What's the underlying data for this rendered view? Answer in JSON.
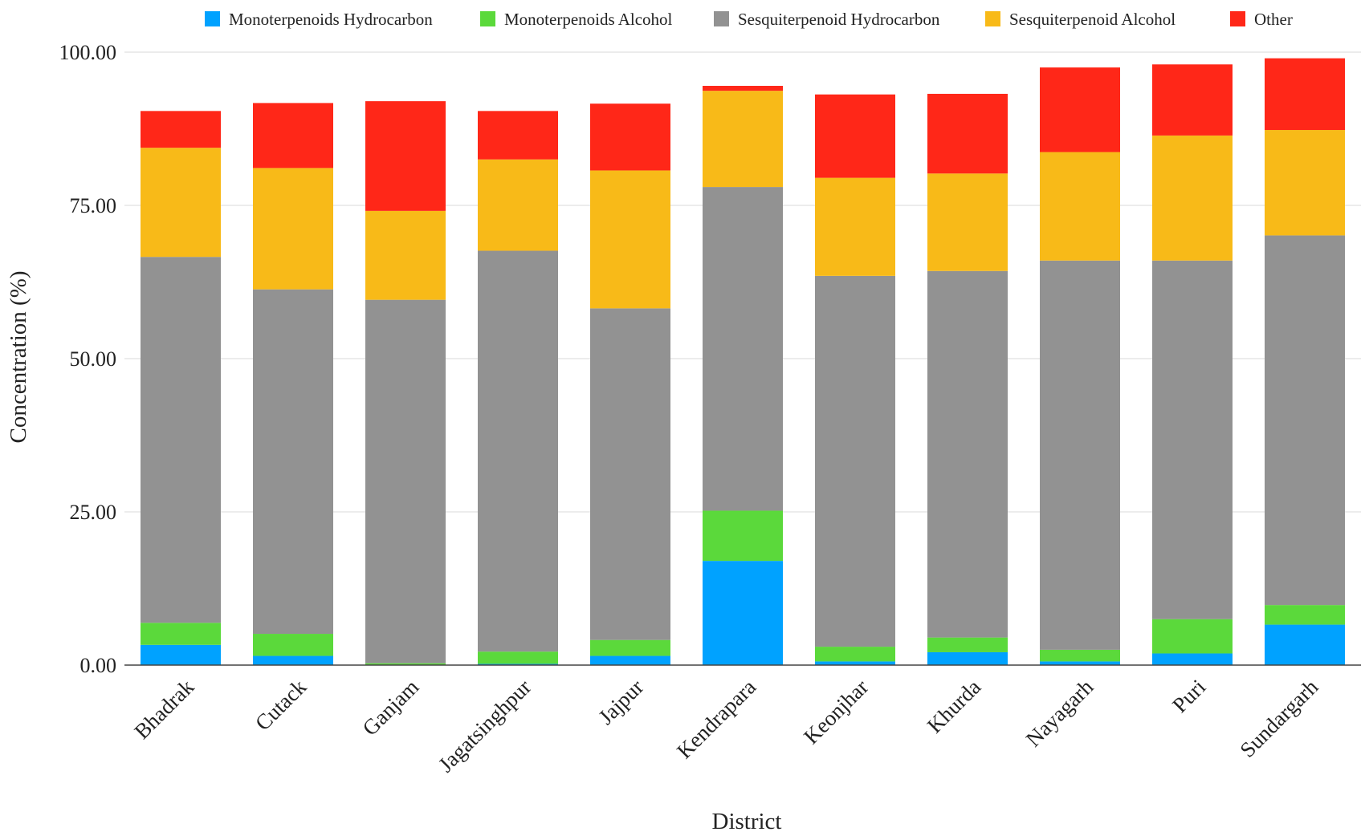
{
  "chart_data": {
    "type": "bar",
    "stacked": true,
    "title": "",
    "xlabel": "District",
    "ylabel": "Concentration (%)",
    "ylim": [
      0,
      100
    ],
    "yticks": [
      "0.00",
      "25.00",
      "50.00",
      "75.00",
      "100.00"
    ],
    "ytick_values": [
      0,
      25,
      50,
      75,
      100
    ],
    "grid": true,
    "legend_position": "top",
    "categories": [
      "Bhadrak",
      "Cutack",
      "Ganjam",
      "Jagatsinghpur",
      "Jajpur",
      "Kendrapara",
      "Keonjhar",
      "Khurda",
      "Nayagarh",
      "Puri",
      "Sundargarh"
    ],
    "series": [
      {
        "name": "Monoterpenoids Hydrocarbon",
        "color": "#00A2FF",
        "values": [
          3.3,
          1.5,
          0.0,
          0.2,
          1.5,
          17.0,
          0.6,
          2.1,
          0.6,
          1.9,
          6.6
        ]
      },
      {
        "name": "Monoterpenoids Alcohol",
        "color": "#5BD93B",
        "values": [
          3.6,
          3.6,
          0.3,
          2.0,
          2.6,
          8.2,
          2.4,
          2.4,
          1.9,
          5.6,
          3.2
        ]
      },
      {
        "name": "Sesquiterpenoid Hydrocarbon",
        "color": "#929292",
        "values": [
          59.7,
          56.2,
          59.3,
          65.4,
          54.1,
          52.8,
          60.5,
          59.8,
          63.5,
          58.5,
          60.3
        ]
      },
      {
        "name": "Sesquiterpenoid Alcohol",
        "color": "#F8BA18",
        "values": [
          17.8,
          19.8,
          14.5,
          14.9,
          22.5,
          15.7,
          16.0,
          15.9,
          17.7,
          20.4,
          17.2
        ]
      },
      {
        "name": "Other",
        "color": "#FF2718",
        "values": [
          6.0,
          10.6,
          17.9,
          7.9,
          10.9,
          0.8,
          13.6,
          13.0,
          13.8,
          11.6,
          11.7
        ]
      }
    ]
  }
}
